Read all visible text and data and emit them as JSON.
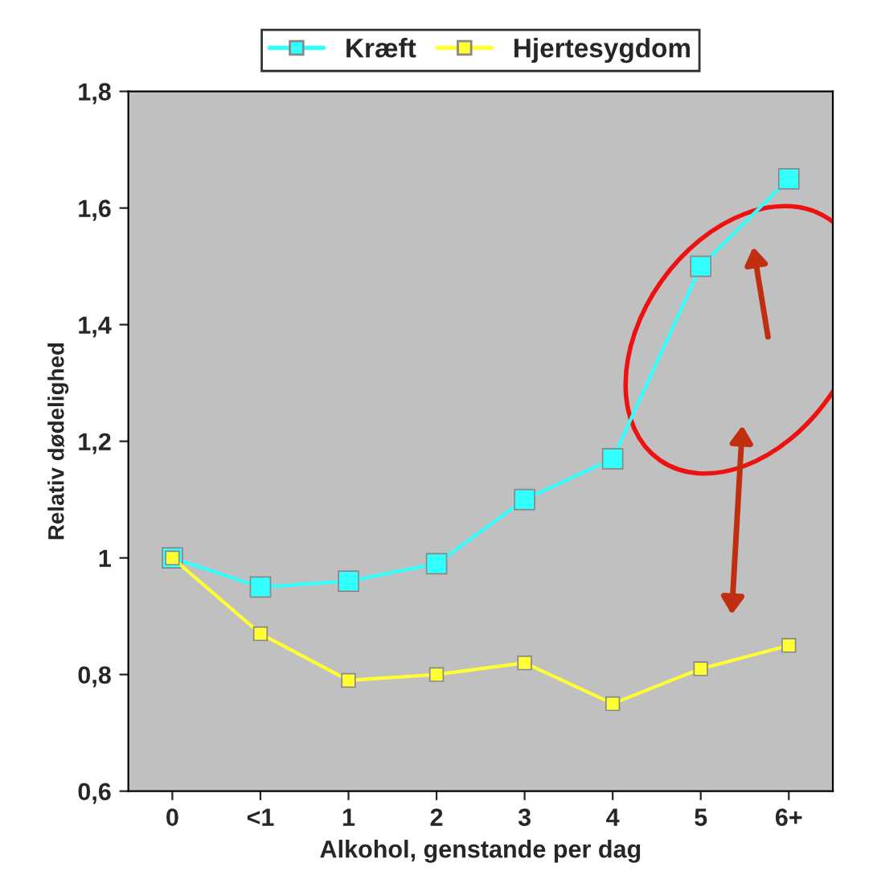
{
  "chart_data": {
    "type": "line",
    "xlabel": "Alkohol, genstande per dag",
    "ylabel": "Relativ dødelighed",
    "categories": [
      "0",
      "<1",
      "1",
      "2",
      "3",
      "4",
      "5",
      "6+"
    ],
    "series": [
      {
        "name": "Kræft",
        "color": "#33ffff",
        "values": [
          1.0,
          0.95,
          0.96,
          0.99,
          1.1,
          1.17,
          1.5,
          1.65
        ]
      },
      {
        "name": "Hjertesygdom",
        "color": "#ffff33",
        "values": [
          1.0,
          0.87,
          0.79,
          0.8,
          0.82,
          0.75,
          0.81,
          0.85
        ]
      }
    ],
    "ylim": [
      0.6,
      1.8
    ],
    "yticks": [
      {
        "value": 0.6,
        "label": "0,6"
      },
      {
        "value": 0.8,
        "label": "0,8"
      },
      1,
      {
        "value": 1.2,
        "label": "1,2"
      },
      {
        "value": 1.4,
        "label": "1,4"
      },
      {
        "value": 1.6,
        "label": "1,6"
      },
      {
        "value": 1.8,
        "label": "1,8"
      }
    ],
    "marker": "square",
    "line_style": "solid",
    "grid": false,
    "legend": "top"
  }
}
